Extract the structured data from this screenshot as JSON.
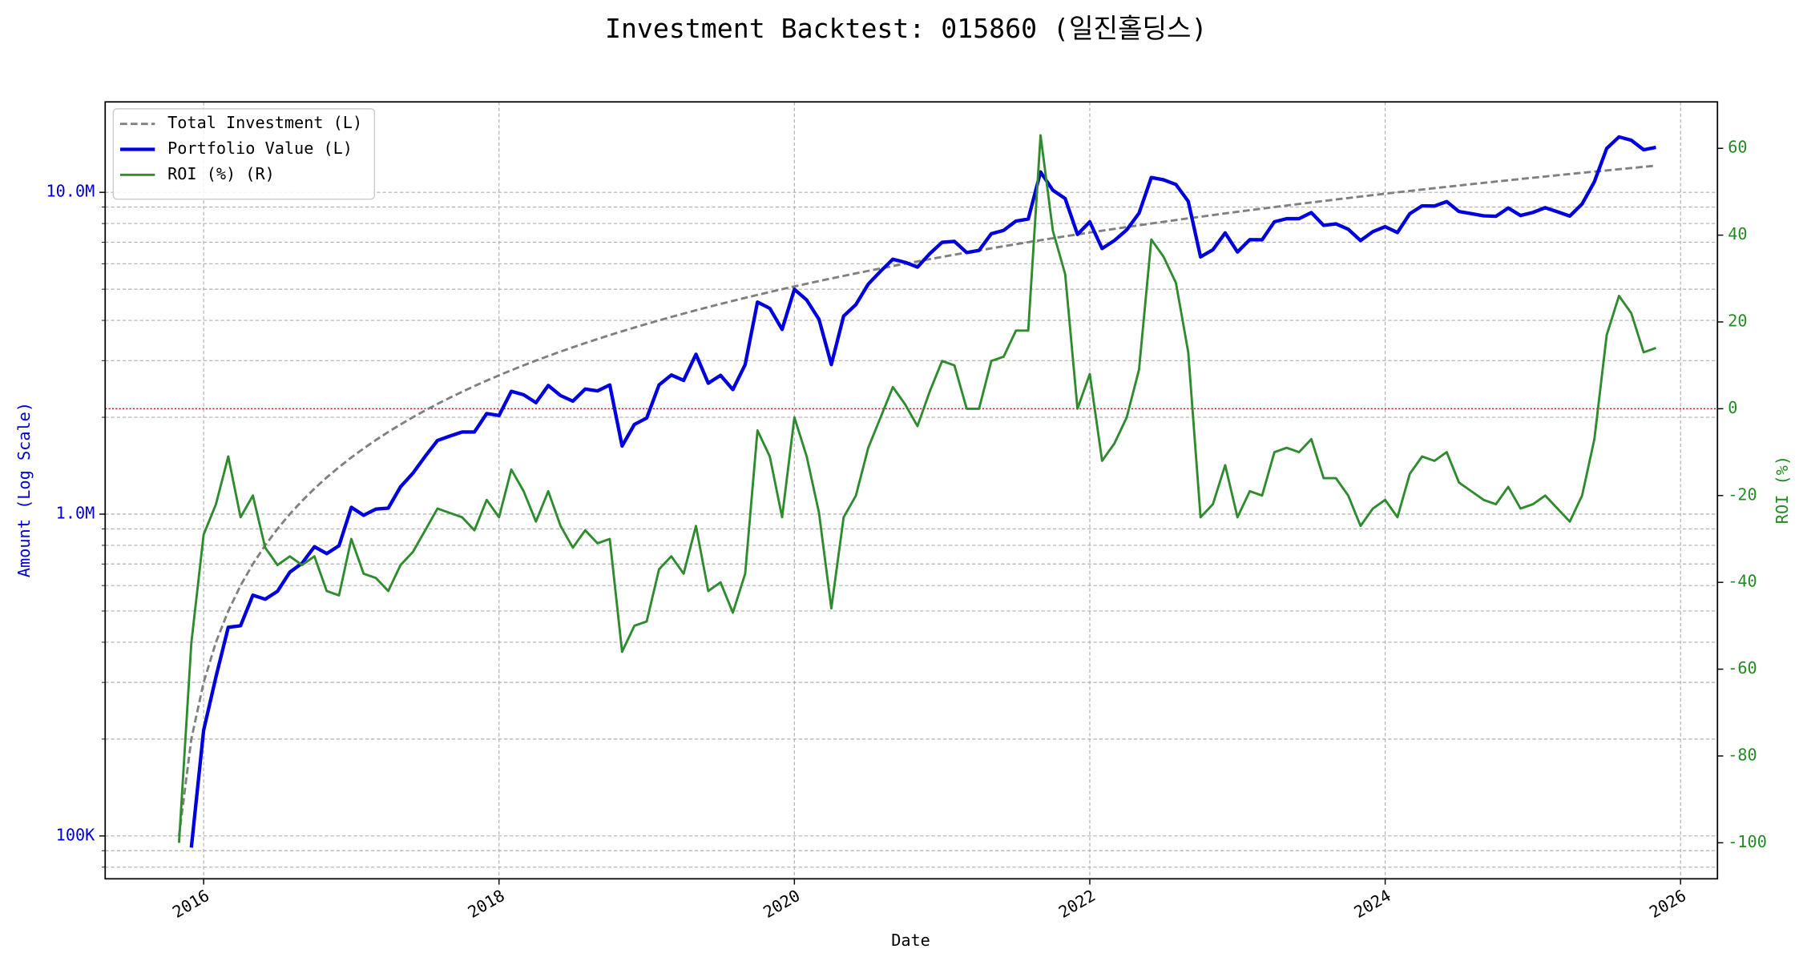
{
  "chart_data": {
    "type": "line",
    "title": "Investment Backtest: 015860 (일진홀딩스)",
    "xlabel": "Date",
    "ylabel": "Amount (Log Scale)",
    "y2label": "ROI (%)",
    "yscale": "log",
    "grid": true,
    "legend": "upper left",
    "ylabel_color": "#0000cd",
    "y2label_color": "#228b22",
    "hline": {
      "value": 0,
      "axis": "y2",
      "color": "#b22222"
    },
    "xlim": [
      "2015-05",
      "2026-04"
    ],
    "xticks": [
      {
        "value": "2016-01",
        "label": "2016"
      },
      {
        "value": "2018-01",
        "label": "2018"
      },
      {
        "value": "2020-01",
        "label": "2020"
      },
      {
        "value": "2022-01",
        "label": "2022"
      },
      {
        "value": "2024-01",
        "label": "2024"
      },
      {
        "value": "2026-01",
        "label": "2026"
      }
    ],
    "ylim": [
      73600,
      19100000
    ],
    "yticks": [
      {
        "value": 100000,
        "label": "100K"
      },
      {
        "value": 1000000,
        "label": "1.0M"
      },
      {
        "value": 10000000,
        "label": "10.0M"
      }
    ],
    "yminorticks": [
      80000,
      90000,
      200000,
      300000,
      400000,
      500000,
      600000,
      700000,
      800000,
      900000,
      2000000,
      3000000,
      4000000,
      5000000,
      6000000,
      7000000,
      8000000,
      9000000
    ],
    "y2lim": [
      -108.3,
      70.7
    ],
    "y2ticks": [
      -100,
      -80,
      -60,
      -40,
      -20,
      0,
      20,
      40,
      60
    ],
    "x": [
      "2015-11",
      "2015-12",
      "2016-01",
      "2016-02",
      "2016-03",
      "2016-04",
      "2016-05",
      "2016-06",
      "2016-07",
      "2016-08",
      "2016-09",
      "2016-10",
      "2016-11",
      "2016-12",
      "2017-01",
      "2017-02",
      "2017-03",
      "2017-04",
      "2017-05",
      "2017-06",
      "2017-07",
      "2017-08",
      "2017-09",
      "2017-10",
      "2017-11",
      "2017-12",
      "2018-01",
      "2018-02",
      "2018-03",
      "2018-04",
      "2018-05",
      "2018-06",
      "2018-07",
      "2018-08",
      "2018-09",
      "2018-10",
      "2018-11",
      "2018-12",
      "2019-01",
      "2019-02",
      "2019-03",
      "2019-04",
      "2019-05",
      "2019-06",
      "2019-07",
      "2019-08",
      "2019-09",
      "2019-10",
      "2019-11",
      "2019-12",
      "2020-01",
      "2020-02",
      "2020-03",
      "2020-04",
      "2020-05",
      "2020-06",
      "2020-07",
      "2020-08",
      "2020-09",
      "2020-10",
      "2020-11",
      "2020-12",
      "2021-01",
      "2021-02",
      "2021-03",
      "2021-04",
      "2021-05",
      "2021-06",
      "2021-07",
      "2021-08",
      "2021-09",
      "2021-10",
      "2021-11",
      "2021-12",
      "2022-01",
      "2022-02",
      "2022-03",
      "2022-04",
      "2022-05",
      "2022-06",
      "2022-07",
      "2022-08",
      "2022-09",
      "2022-10",
      "2022-11",
      "2022-12",
      "2023-01",
      "2023-02",
      "2023-03",
      "2023-04",
      "2023-05",
      "2023-06",
      "2023-07",
      "2023-08",
      "2023-09",
      "2023-10",
      "2023-11",
      "2023-12",
      "2024-01",
      "2024-02",
      "2024-03",
      "2024-04",
      "2024-05",
      "2024-06",
      "2024-07",
      "2024-08",
      "2024-09",
      "2024-10",
      "2024-11",
      "2024-12",
      "2025-01",
      "2025-02",
      "2025-03",
      "2025-04",
      "2025-05",
      "2025-06",
      "2025-07",
      "2025-08",
      "2025-09",
      "2025-10",
      "2025-11"
    ],
    "series": [
      {
        "name": "Total Investment (L)",
        "color": "#808080",
        "linestyle": "dashed",
        "linewidth": 2,
        "values": [
          100000,
          200000,
          300000,
          400000,
          500000,
          600000,
          700000,
          800000,
          900000,
          1000000,
          1100000,
          1200000,
          1300000,
          1400000,
          1500000,
          1600000,
          1700000,
          1800000,
          1900000,
          2000000,
          2100000,
          2200000,
          2300000,
          2400000,
          2500000,
          2600000,
          2700000,
          2800000,
          2900000,
          3000000,
          3100000,
          3200000,
          3300000,
          3400000,
          3500000,
          3600000,
          3700000,
          3800000,
          3900000,
          4000000,
          4100000,
          4200000,
          4300000,
          4400000,
          4500000,
          4600000,
          4700000,
          4800000,
          4900000,
          5000000,
          5100000,
          5200000,
          5300000,
          5400000,
          5500000,
          5600000,
          5700000,
          5800000,
          5900000,
          6000000,
          6100000,
          6200000,
          6300000,
          6400000,
          6500000,
          6600000,
          6700000,
          6800000,
          6900000,
          7000000,
          7100000,
          7200000,
          7300000,
          7400000,
          7500000,
          7600000,
          7700000,
          7800000,
          7900000,
          8000000,
          8100000,
          8200000,
          8300000,
          8400000,
          8500000,
          8600000,
          8700000,
          8800000,
          8900000,
          9000000,
          9100000,
          9200000,
          9300000,
          9400000,
          9500000,
          9600000,
          9700000,
          9800000,
          9900000,
          10000000,
          10100000,
          10200000,
          10300000,
          10400000,
          10500000,
          10600000,
          10700000,
          10800000,
          10900000,
          11000000,
          11100000,
          11200000,
          11300000,
          11400000,
          11500000,
          11600000,
          11700000,
          11800000,
          11900000,
          12000000,
          12100000
        ]
      },
      {
        "name": "Portfolio Value (L)",
        "color": "#0000dd",
        "linestyle": "solid",
        "linewidth": 3,
        "values": [
          0,
          92000,
          213000,
          312000,
          445000,
          450000,
          560000,
          544000,
          576000,
          660000,
          704000,
          792000,
          754000,
          798000,
          1050000,
          992000,
          1037000,
          1044000,
          1216000,
          1340000,
          1512000,
          1694000,
          1748000,
          1800000,
          1800000,
          2054000,
          2025000,
          2408000,
          2349000,
          2220000,
          2511000,
          2336000,
          2244000,
          2448000,
          2415000,
          2520000,
          1628000,
          1900000,
          1989000,
          2520000,
          2706000,
          2604000,
          3139000,
          2552000,
          2700000,
          2438000,
          2914000,
          4560000,
          4361000,
          3750000,
          4998000,
          4628000,
          4028000,
          2916000,
          4125000,
          4480000,
          5187000,
          5684000,
          6195000,
          6060000,
          5856000,
          6448000,
          6993000,
          7040000,
          6500000,
          6600000,
          7437000,
          7616000,
          8142000,
          8260000,
          11573000,
          10152000,
          9563000,
          7400000,
          8100000,
          6688000,
          7084000,
          7644000,
          8611000,
          11120000,
          10935000,
          10578000,
          9379000,
          6300000,
          6630000,
          7482000,
          6525000,
          7128000,
          7120000,
          8100000,
          8281000,
          8280000,
          8649000,
          7896000,
          7980000,
          7680000,
          7081000,
          7546000,
          7821000,
          7500000,
          8585000,
          9078000,
          9064000,
          9360000,
          8715000,
          8586000,
          8453000,
          8424000,
          8938000,
          8470000,
          8658000,
          8960000,
          8701000,
          8436000,
          9200000,
          10788000,
          13689000,
          14868000,
          14518000,
          13560000,
          13794000
        ]
      },
      {
        "name": "ROI (%) (R)",
        "color": "#2e8b2e",
        "linestyle": "solid",
        "linewidth": 2,
        "axis": "y2",
        "values": [
          -100,
          -54,
          -29,
          -22,
          -11,
          -25,
          -20,
          -32,
          -36,
          -34,
          -36,
          -34,
          -42,
          -43,
          -30,
          -38,
          -39,
          -42,
          -36,
          -33,
          -28,
          -23,
          -24,
          -25,
          -28,
          -21,
          -25,
          -14,
          -19,
          -26,
          -19,
          -27,
          -32,
          -28,
          -31,
          -30,
          -56,
          -50,
          -49,
          -37,
          -34,
          -38,
          -27,
          -42,
          -40,
          -47,
          -38,
          -5,
          -11,
          -25,
          -2,
          -11,
          -24,
          -46,
          -25,
          -20,
          -9,
          -2,
          5,
          1,
          -4,
          4,
          11,
          10,
          0,
          0,
          11,
          12,
          18,
          18,
          63,
          41,
          31,
          0,
          8,
          -12,
          -8,
          -2,
          9,
          39,
          35,
          29,
          13,
          -25,
          -22,
          -13,
          -25,
          -19,
          -20,
          -10,
          -9,
          -10,
          -7,
          -16,
          -16,
          -20,
          -27,
          -23,
          -21,
          -25,
          -15,
          -11,
          -12,
          -10,
          -17,
          -19,
          -21,
          -22,
          -18,
          -23,
          -22,
          -20,
          -23,
          -26,
          -20,
          -7,
          17,
          26,
          22,
          13,
          14
        ]
      }
    ]
  }
}
